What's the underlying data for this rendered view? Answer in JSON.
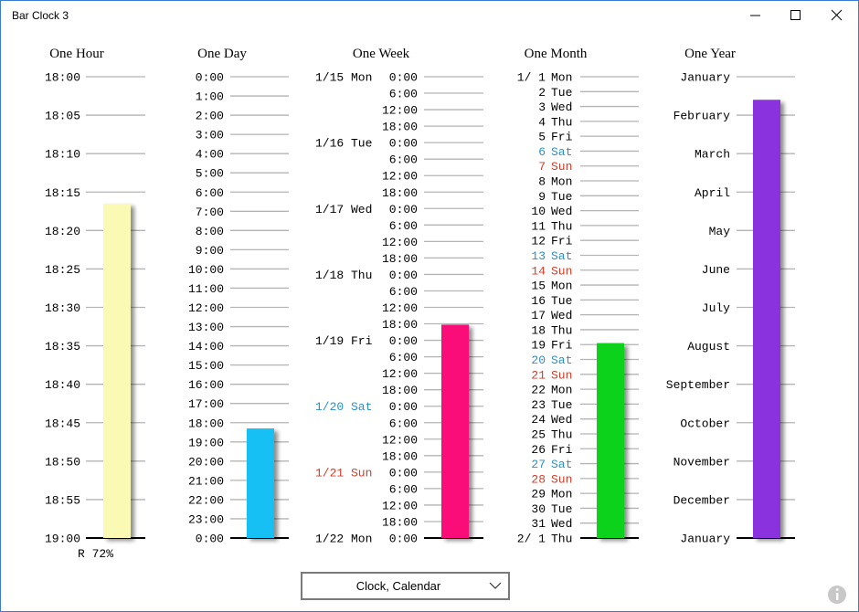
{
  "window": {
    "title": "Bar Clock 3"
  },
  "columns": [
    {
      "title": "One Hour",
      "color": "#fafab4",
      "value": 3.3,
      "ticks": [
        "18:00",
        "18:05",
        "18:10",
        "18:15",
        "18:20",
        "18:25",
        "18:30",
        "18:35",
        "18:40",
        "18:45",
        "18:50",
        "18:55",
        "19:00"
      ]
    },
    {
      "title": "One Day",
      "color": "#14c0f5",
      "value": 18.3,
      "ticks": [
        "0:00",
        "1:00",
        "2:00",
        "3:00",
        "4:00",
        "5:00",
        "6:00",
        "7:00",
        "8:00",
        "9:00",
        "10:00",
        "11:00",
        "12:00",
        "13:00",
        "14:00",
        "15:00",
        "16:00",
        "17:00",
        "18:00",
        "19:00",
        "20:00",
        "21:00",
        "22:00",
        "23:00",
        "0:00"
      ]
    },
    {
      "title": "One Week",
      "color": "#fa0f78",
      "value": 15.05,
      "ticks": [
        {
          "date": "1/15 Mon",
          "time": "0:00"
        },
        {
          "time": "6:00"
        },
        {
          "time": "12:00"
        },
        {
          "time": "18:00"
        },
        {
          "date": "1/16 Tue",
          "time": "0:00"
        },
        {
          "time": "6:00"
        },
        {
          "time": "12:00"
        },
        {
          "time": "18:00"
        },
        {
          "date": "1/17 Wed",
          "time": "0:00"
        },
        {
          "time": "6:00"
        },
        {
          "time": "12:00"
        },
        {
          "time": "18:00"
        },
        {
          "date": "1/18 Thu",
          "time": "0:00"
        },
        {
          "time": "6:00"
        },
        {
          "time": "12:00"
        },
        {
          "time": "18:00"
        },
        {
          "date": "1/19 Fri",
          "time": "0:00"
        },
        {
          "time": "6:00"
        },
        {
          "time": "12:00"
        },
        {
          "time": "18:00"
        },
        {
          "date": "1/20 Sat",
          "time": "0:00",
          "color": "#2a8fc8"
        },
        {
          "time": "6:00"
        },
        {
          "time": "12:00"
        },
        {
          "time": "18:00"
        },
        {
          "date": "1/21 Sun",
          "time": "0:00",
          "color": "#d23c28"
        },
        {
          "time": "6:00"
        },
        {
          "time": "12:00"
        },
        {
          "time": "18:00"
        },
        {
          "date": "1/22 Mon",
          "time": "0:00"
        }
      ]
    },
    {
      "title": "One Month",
      "color": "#10d21c",
      "value": 17.9,
      "ticks": [
        {
          "date": "1/ 1",
          "day": "Mon"
        },
        {
          "date": "2",
          "day": "Tue"
        },
        {
          "date": "3",
          "day": "Wed"
        },
        {
          "date": "4",
          "day": "Thu"
        },
        {
          "date": "5",
          "day": "Fri"
        },
        {
          "date": "6",
          "day": "Sat",
          "color": "#2a8fc8"
        },
        {
          "date": "7",
          "day": "Sun",
          "color": "#d23c28"
        },
        {
          "date": "8",
          "day": "Mon"
        },
        {
          "date": "9",
          "day": "Tue"
        },
        {
          "date": "10",
          "day": "Wed"
        },
        {
          "date": "11",
          "day": "Thu"
        },
        {
          "date": "12",
          "day": "Fri"
        },
        {
          "date": "13",
          "day": "Sat",
          "color": "#2a8fc8"
        },
        {
          "date": "14",
          "day": "Sun",
          "color": "#d23c28"
        },
        {
          "date": "15",
          "day": "Mon"
        },
        {
          "date": "16",
          "day": "Tue"
        },
        {
          "date": "17",
          "day": "Wed"
        },
        {
          "date": "18",
          "day": "Thu"
        },
        {
          "date": "19",
          "day": "Fri"
        },
        {
          "date": "20",
          "day": "Sat",
          "color": "#2a8fc8"
        },
        {
          "date": "21",
          "day": "Sun",
          "color": "#d23c28"
        },
        {
          "date": "22",
          "day": "Mon"
        },
        {
          "date": "23",
          "day": "Tue"
        },
        {
          "date": "24",
          "day": "Wed"
        },
        {
          "date": "25",
          "day": "Thu"
        },
        {
          "date": "26",
          "day": "Fri"
        },
        {
          "date": "27",
          "day": "Sat",
          "color": "#2a8fc8"
        },
        {
          "date": "28",
          "day": "Sun",
          "color": "#d23c28"
        },
        {
          "date": "29",
          "day": "Mon"
        },
        {
          "date": "30",
          "day": "Tue"
        },
        {
          "date": "31",
          "day": "Wed"
        },
        {
          "date": "2/ 1",
          "day": "Thu"
        }
      ]
    },
    {
      "title": "One Year",
      "color": "#8a32de",
      "value": 0.6,
      "ticks": [
        "January",
        "February",
        "March",
        "April",
        "May",
        "June",
        "July",
        "August",
        "September",
        "October",
        "November",
        "December",
        "January"
      ]
    }
  ],
  "status": "R 72%",
  "dropdown": "Clock, Calendar"
}
